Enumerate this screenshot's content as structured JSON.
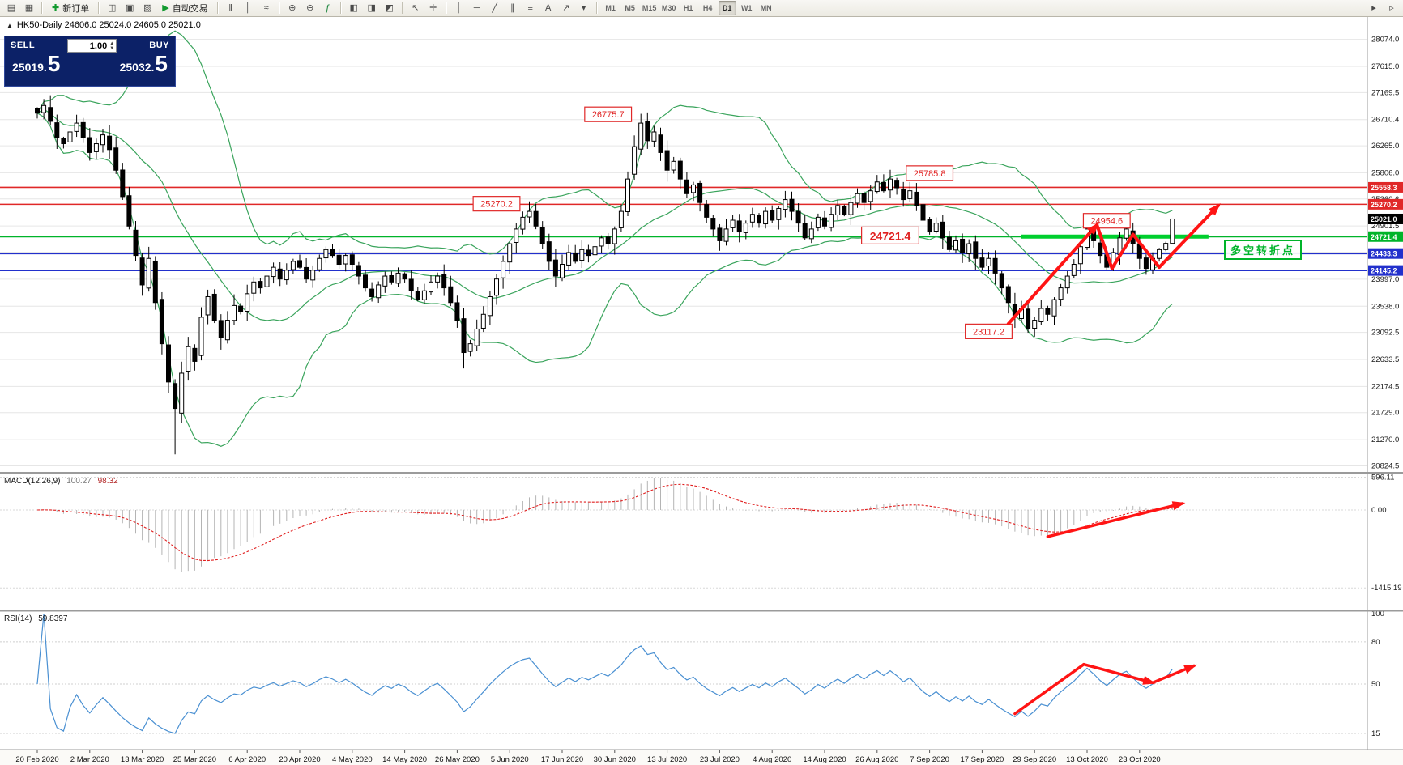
{
  "toolbar": {
    "groups": [
      {
        "name": "windows",
        "items": [
          {
            "name": "market-watch-icon",
            "glyph": "▤"
          },
          {
            "name": "navigator-icon",
            "glyph": "▦"
          }
        ]
      },
      {
        "name": "order",
        "items": [
          {
            "name": "new-order-button",
            "glyph": "✚",
            "glyph_color": "#129a2f",
            "label": "新订单"
          }
        ]
      },
      {
        "name": "panels",
        "items": [
          {
            "name": "chart-window-icon",
            "glyph": "◫"
          },
          {
            "name": "strategy-tester-icon",
            "glyph": "▣"
          },
          {
            "name": "terminal-icon",
            "glyph": "▧"
          },
          {
            "name": "auto-trading-button",
            "glyph": "▶",
            "glyph_color": "#129a2f",
            "label": "自动交易"
          }
        ]
      },
      {
        "name": "chart-types",
        "items": [
          {
            "name": "bars-chart-icon",
            "glyph": "‖"
          },
          {
            "name": "candles-chart-icon",
            "glyph": "║"
          },
          {
            "name": "line-chart-icon",
            "glyph": "≈"
          }
        ]
      },
      {
        "name": "zoom",
        "items": [
          {
            "name": "zoom-in-icon",
            "glyph": "⊕"
          },
          {
            "name": "zoom-out-icon",
            "glyph": "⊖"
          },
          {
            "name": "indicators-icon",
            "glyph": "ƒ",
            "glyph_color": "#0a7c2f"
          }
        ]
      },
      {
        "name": "layout",
        "items": [
          {
            "name": "tile-windows-icon",
            "glyph": "◧"
          },
          {
            "name": "cascade-windows-icon",
            "glyph": "◨"
          },
          {
            "name": "arrange-windows-icon",
            "glyph": "◩"
          }
        ]
      },
      {
        "name": "cursor-tools",
        "items": [
          {
            "name": "cursor-icon",
            "glyph": "↖"
          },
          {
            "name": "crosshair-icon",
            "glyph": "✛"
          }
        ]
      },
      {
        "name": "draw-tools",
        "items": [
          {
            "name": "vertical-line-icon",
            "glyph": "│"
          },
          {
            "name": "horizontal-line-icon",
            "glyph": "─"
          },
          {
            "name": "trendline-icon",
            "glyph": "╱"
          },
          {
            "name": "channel-icon",
            "glyph": "∥"
          },
          {
            "name": "fibonacci-icon",
            "glyph": "≡"
          },
          {
            "name": "text-tool-icon",
            "glyph": "A"
          },
          {
            "name": "arrow-tool-icon",
            "glyph": "↗"
          },
          {
            "name": "shapes-dropdown-icon",
            "glyph": "▾"
          }
        ]
      },
      {
        "name": "timeframes",
        "items": [
          {
            "label": "M1"
          },
          {
            "label": "M5"
          },
          {
            "label": "M15"
          },
          {
            "label": "M30"
          },
          {
            "label": "H1"
          },
          {
            "label": "H4"
          },
          {
            "label": "D1",
            "active": true
          },
          {
            "label": "W1"
          },
          {
            "label": "MN"
          }
        ]
      },
      {
        "name": "right-icons",
        "align": "right",
        "items": [
          {
            "name": "auto-scroll-icon",
            "glyph": "▸"
          },
          {
            "name": "chart-shift-icon",
            "glyph": "▹"
          }
        ]
      }
    ]
  },
  "chart": {
    "collapse_glyph": "▲",
    "title": "HK50-Daily 24606.0 25024.0 24605.0 25021.0",
    "trade_panel": {
      "sell_label": "SELL",
      "buy_label": "BUY",
      "volume": "1.00",
      "sell_price": "25019.",
      "sell_price_big": "5",
      "buy_price": "25032.",
      "buy_price_big": "5",
      "up_glyph": "▲",
      "down_glyph": "▼"
    }
  },
  "colors": {
    "trade_panel_bg": "#0c2167",
    "arrow_red": "#ff1414",
    "bollinger_green": "#3aa45c",
    "rsi_blue": "#4a90d2",
    "turning_green": "#00b42a",
    "level_red": "#e02828",
    "level_blue": "#2230cc",
    "current_price_bg": "#000000"
  },
  "chart_data": {
    "type": "candlestick",
    "symbol": "HK50",
    "timeframe": "Daily",
    "dates": [
      "20 Feb 2020",
      "2 Mar 2020",
      "13 Mar 2020",
      "25 Mar 2020",
      "6 Apr 2020",
      "20 Apr 2020",
      "4 May 2020",
      "14 May 2020",
      "26 May 2020",
      "5 Jun 2020",
      "17 Jun 2020",
      "30 Jun 2020",
      "13 Jul 2020",
      "23 Jul 2020",
      "4 Aug 2020",
      "14 Aug 2020",
      "26 Aug 2020",
      "7 Sep 2020",
      "17 Sep 2020",
      "29 Sep 2020",
      "13 Oct 2020",
      "23 Oct 2020"
    ],
    "date_bar_indices": [
      0,
      8,
      16,
      24,
      32,
      40,
      48,
      56,
      64,
      72,
      80,
      88,
      96,
      104,
      112,
      120,
      128,
      136,
      144,
      152,
      160,
      168
    ],
    "closes": [
      26820,
      26950,
      26680,
      26400,
      26300,
      26500,
      26650,
      26400,
      26150,
      26300,
      26450,
      26200,
      25850,
      25400,
      24900,
      24400,
      23900,
      24350,
      23600,
      22900,
      22250,
      21800,
      22400,
      22850,
      22600,
      23350,
      23700,
      23300,
      23000,
      23300,
      23550,
      23450,
      23750,
      23950,
      23850,
      24050,
      24200,
      24000,
      24150,
      24300,
      24200,
      24000,
      24150,
      24350,
      24500,
      24400,
      24250,
      24400,
      24250,
      24050,
      23850,
      23700,
      23900,
      24050,
      23950,
      24100,
      24000,
      23800,
      23650,
      23800,
      23950,
      24050,
      23850,
      23600,
      23300,
      22750,
      22900,
      23150,
      23400,
      23700,
      24000,
      24300,
      24600,
      24850,
      25050,
      25150,
      24900,
      24600,
      24300,
      24050,
      24250,
      24450,
      24300,
      24500,
      24400,
      24550,
      24700,
      24600,
      24850,
      25150,
      25700,
      26250,
      26650,
      26350,
      26500,
      26150,
      25850,
      26000,
      25700,
      25450,
      25600,
      25300,
      25050,
      24850,
      24650,
      24850,
      25000,
      24800,
      24950,
      25100,
      24950,
      25150,
      25000,
      25200,
      25350,
      25150,
      24950,
      24700,
      24850,
      25050,
      24900,
      25100,
      25250,
      25100,
      25300,
      25450,
      25300,
      25500,
      25650,
      25500,
      25700,
      25550,
      25350,
      25500,
      25250,
      25000,
      24800,
      24950,
      24700,
      24500,
      24650,
      24450,
      24600,
      24350,
      24200,
      24350,
      24100,
      23850,
      23600,
      23350,
      23500,
      23150,
      23300,
      23500,
      23400,
      23650,
      23850,
      24050,
      24250,
      24550,
      24850,
      24650,
      24400,
      24200,
      24450,
      24700,
      24850,
      24600,
      24350,
      24180,
      24350,
      24500,
      24606,
      25021
    ],
    "last_candle": {
      "o": 24606.0,
      "h": 25024.0,
      "l": 24605.0,
      "c": 25021.0
    },
    "extremes": [
      {
        "bar": 1,
        "high": 27060
      },
      {
        "bar": 21,
        "low": 21020
      },
      {
        "bar": 65,
        "low": 22480
      },
      {
        "bar": 75,
        "high": 25320
      },
      {
        "bar": 92,
        "high": 26775.7
      },
      {
        "bar": 104,
        "low": 24480
      },
      {
        "bar": 130,
        "high": 25785.8
      },
      {
        "bar": 151,
        "low": 23117.2
      },
      {
        "bar": 160,
        "high": 24954.6
      },
      {
        "bar": 163,
        "low": 24150
      },
      {
        "bar": 169,
        "low": 24142
      }
    ],
    "y_axis_ticks": [
      28074.0,
      27615.0,
      27169.5,
      26710.4,
      26265.0,
      25806.0,
      25360.6,
      24901.5,
      24456.1,
      23997.0,
      23538.0,
      23092.5,
      22633.5,
      22174.5,
      21729.0,
      21270.0,
      20824.5
    ],
    "levels": [
      {
        "value": 25558.3,
        "color": "#e02828",
        "width": 1.6
      },
      {
        "value": 25270.2,
        "color": "#e02828",
        "width": 1.6
      },
      {
        "value": 24721.4,
        "color": "#00b42a",
        "width": 2
      },
      {
        "value": 24433.3,
        "color": "#2230cc",
        "width": 1.8
      },
      {
        "value": 24145.2,
        "color": "#2230cc",
        "width": 1.8
      }
    ],
    "current_price": {
      "value": 25021.0,
      "bg": "#000000"
    },
    "annotations": [
      {
        "text": "26775.7",
        "bar": 87,
        "price": 26800,
        "size": 11
      },
      {
        "text": "25270.2",
        "bar": 70,
        "price": 25280,
        "size": 11
      },
      {
        "text": "25785.8",
        "bar": 136,
        "price": 25800,
        "size": 11
      },
      {
        "text": "24954.6",
        "bar": 163,
        "price": 24990,
        "size": 11
      },
      {
        "text": "24721.4",
        "bar": 130,
        "price": 24740,
        "size": 14
      },
      {
        "text": "23117.2",
        "bar": 145,
        "price": 23110,
        "size": 11
      }
    ],
    "turning_point_label": "多空转折点",
    "green_segment": {
      "from_bar": 150,
      "to_bar": 178.5,
      "value": 24721.4,
      "color": "#00cf2e"
    },
    "arrows_main": [
      {
        "pts": [
          [
            148,
            23240
          ],
          [
            161.5,
            24920
          ]
        ],
        "head": true
      },
      {
        "pts": [
          [
            161.5,
            24920
          ],
          [
            163.8,
            24180
          ],
          [
            167,
            24760
          ],
          [
            171,
            24200
          ],
          [
            180,
            25250
          ]
        ],
        "head": true
      }
    ],
    "indicators": {
      "bollinger": {
        "period": 20,
        "deviation": 2
      },
      "macd": {
        "label": "MACD(12,26,9)",
        "value_main": "100.27",
        "value_signal": "98.32",
        "axis": [
          "596.11",
          "0.00",
          "-1415.19"
        ],
        "arrow": {
          "pts": [
            [
              154,
              -485
            ],
            [
              174.5,
              118
            ]
          ],
          "head": true
        }
      },
      "rsi": {
        "label": "RSI(14)",
        "value": "59.8397",
        "axis": [
          100,
          80,
          50,
          15
        ],
        "grid": [
          80,
          50,
          15
        ],
        "arrows": [
          {
            "pts": [
              [
                149,
                29
              ],
              [
                159.5,
                64
              ]
            ],
            "head": false
          },
          {
            "pts": [
              [
                159.5,
                64
              ],
              [
                170,
                51
              ]
            ],
            "head": true
          },
          {
            "pts": [
              [
                170,
                51
              ],
              [
                176.3,
                63
              ]
            ],
            "head": true
          }
        ]
      }
    }
  }
}
